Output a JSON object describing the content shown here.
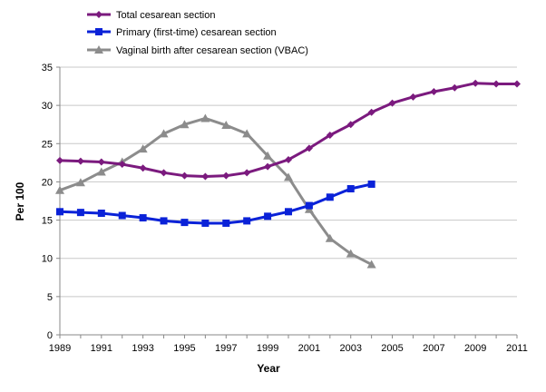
{
  "chart_data": {
    "type": "line",
    "title": "",
    "xlabel": "Year",
    "ylabel": "Per 100",
    "ylim": [
      0,
      35
    ],
    "xlim": [
      1989,
      2011
    ],
    "yticks": [
      0,
      5,
      10,
      15,
      20,
      25,
      30,
      35
    ],
    "xticks": [
      1989,
      1991,
      1993,
      1995,
      1997,
      1999,
      2001,
      2003,
      2005,
      2007,
      2009,
      2011
    ],
    "grid": "horizontal",
    "legend_position": "top-left",
    "series": [
      {
        "name": "Total cesarean section",
        "color": "#7b1a7e",
        "marker": "diamond",
        "x": [
          1989,
          1990,
          1991,
          1992,
          1993,
          1994,
          1995,
          1996,
          1997,
          1998,
          1999,
          2000,
          2001,
          2002,
          2003,
          2004,
          2005,
          2006,
          2007,
          2008,
          2009,
          2010,
          2011
        ],
        "values": [
          22.8,
          22.7,
          22.6,
          22.3,
          21.8,
          21.2,
          20.8,
          20.7,
          20.8,
          21.2,
          22.0,
          22.9,
          24.4,
          26.1,
          27.5,
          29.1,
          30.3,
          31.1,
          31.8,
          32.3,
          32.9,
          32.8,
          32.8
        ]
      },
      {
        "name": "Primary (first-time) cesarean section",
        "color": "#0a22d8",
        "marker": "square",
        "x": [
          1989,
          1990,
          1991,
          1992,
          1993,
          1994,
          1995,
          1996,
          1997,
          1998,
          1999,
          2000,
          2001,
          2002,
          2003,
          2004
        ],
        "values": [
          16.1,
          16.0,
          15.9,
          15.6,
          15.3,
          14.9,
          14.7,
          14.6,
          14.6,
          14.9,
          15.5,
          16.1,
          16.9,
          18.0,
          19.1,
          19.7
        ]
      },
      {
        "name": "Vaginal birth after cesarean section (VBAC)",
        "color": "#8c8c8c",
        "marker": "triangle",
        "x": [
          1989,
          1990,
          1991,
          1992,
          1993,
          1994,
          1995,
          1996,
          1997,
          1998,
          1999,
          2000,
          2001,
          2002,
          2003,
          2004
        ],
        "values": [
          18.9,
          19.9,
          21.3,
          22.6,
          24.3,
          26.3,
          27.5,
          28.3,
          27.4,
          26.3,
          23.4,
          20.6,
          16.4,
          12.6,
          10.6,
          9.2
        ]
      }
    ]
  }
}
